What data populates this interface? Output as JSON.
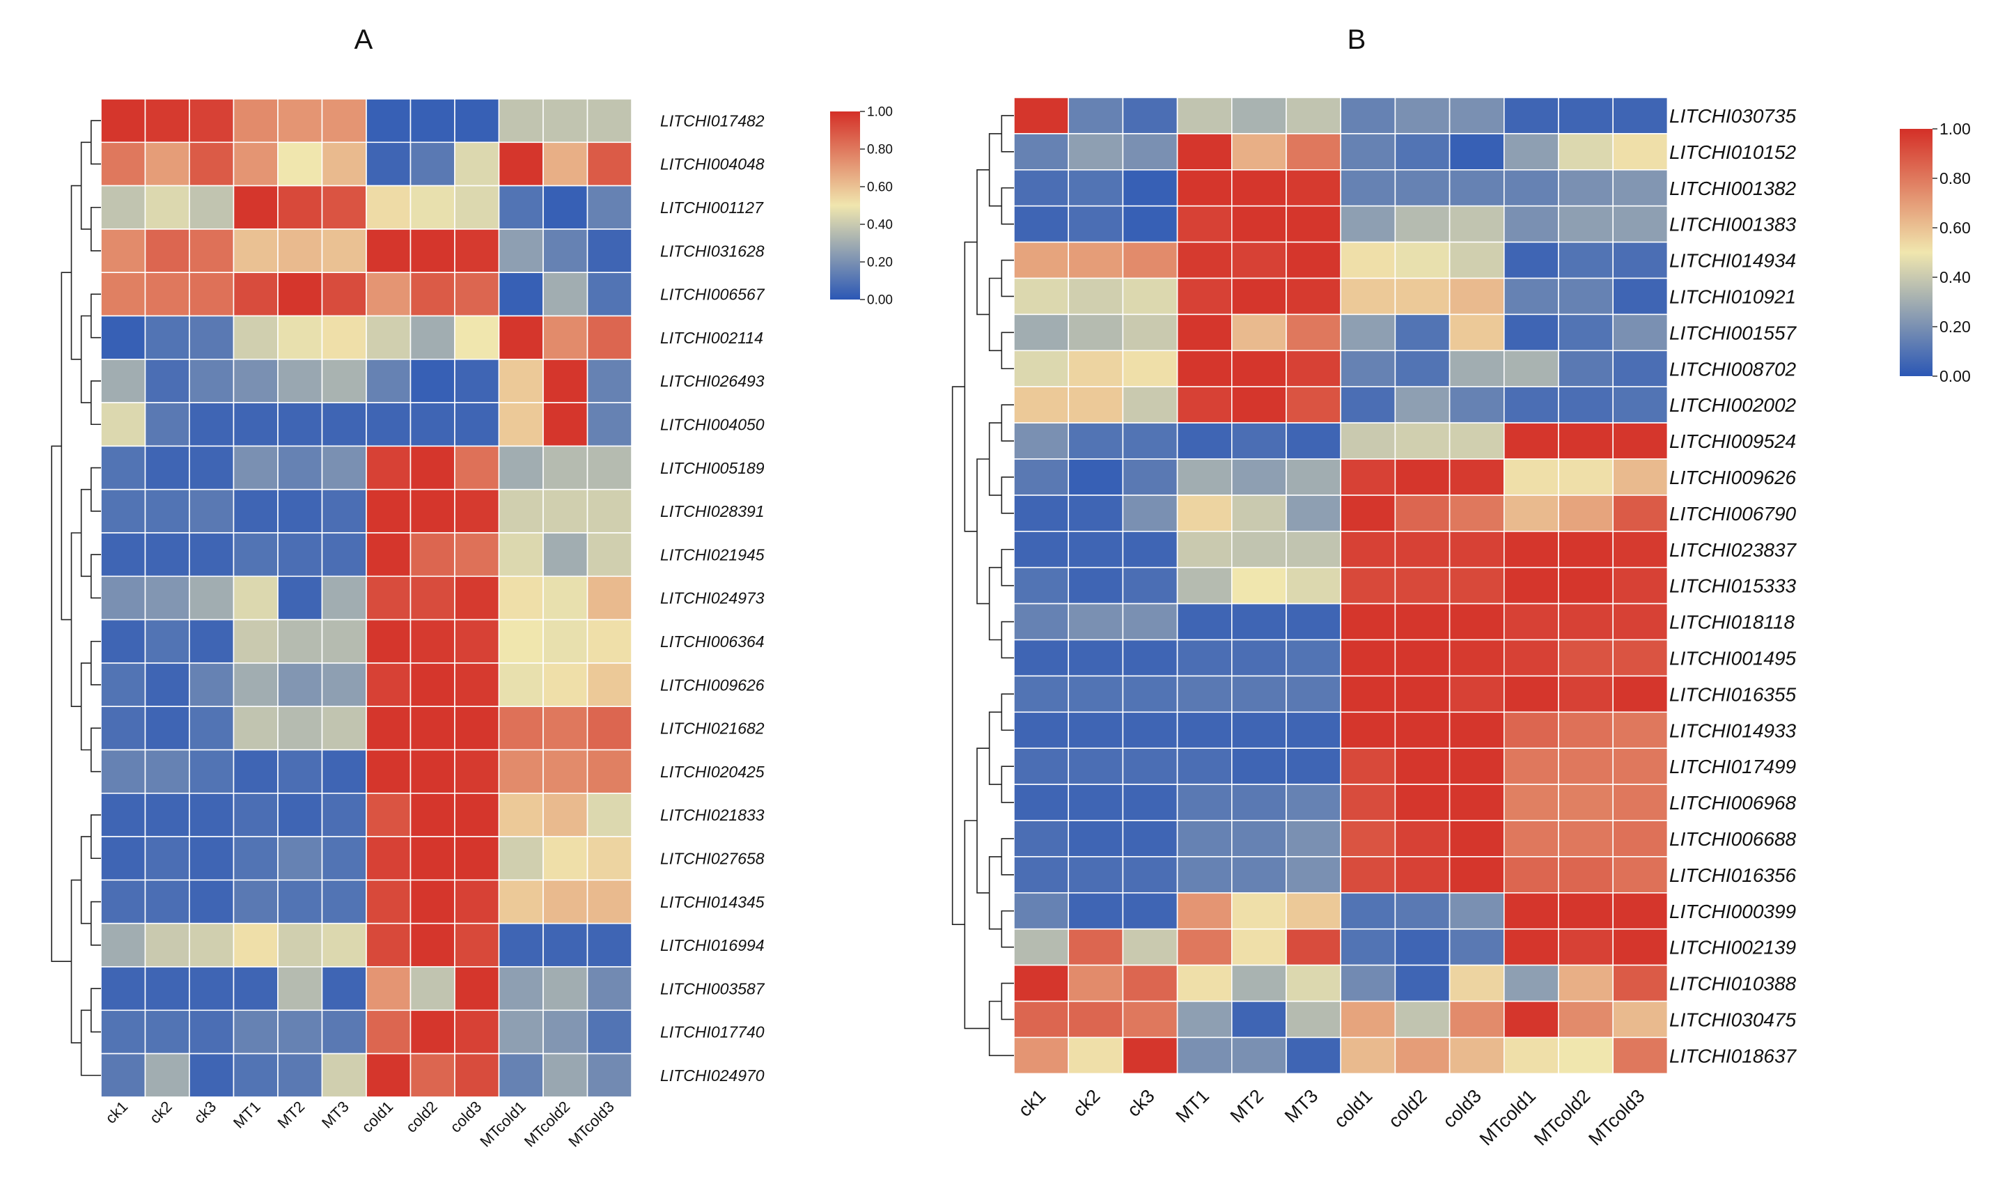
{
  "chart_data": [
    {
      "type": "heatmap",
      "panel_label": "A",
      "columns": [
        "ck1",
        "ck2",
        "ck3",
        "MT1",
        "MT2",
        "MT3",
        "cold1",
        "cold2",
        "cold3",
        "MTcold1",
        "MTcold2",
        "MTcold3"
      ],
      "rows": [
        "LITCHI017482",
        "LITCHI004048",
        "LITCHI001127",
        "LITCHI031628",
        "LITCHI006567",
        "LITCHI002114",
        "LITCHI026493",
        "LITCHI004050",
        "LITCHI005189",
        "LITCHI028391",
        "LITCHI021945",
        "LITCHI024973",
        "LITCHI006364",
        "LITCHI009626",
        "LITCHI021682",
        "LITCHI020425",
        "LITCHI021833",
        "LITCHI027658",
        "LITCHI014345",
        "LITCHI016994",
        "LITCHI003587",
        "LITCHI017740",
        "LITCHI024970"
      ],
      "values": [
        [
          0.98,
          0.97,
          0.95,
          0.75,
          0.72,
          0.72,
          0.03,
          0.03,
          0.03,
          0.38,
          0.38,
          0.38
        ],
        [
          0.8,
          0.7,
          0.88,
          0.72,
          0.5,
          0.62,
          0.05,
          0.12,
          0.45,
          0.98,
          0.65,
          0.88
        ],
        [
          0.38,
          0.45,
          0.38,
          0.98,
          0.93,
          0.9,
          0.53,
          0.48,
          0.45,
          0.1,
          0.03,
          0.15
        ],
        [
          0.75,
          0.85,
          0.82,
          0.6,
          0.62,
          0.6,
          0.98,
          0.98,
          0.97,
          0.25,
          0.15,
          0.05
        ],
        [
          0.78,
          0.8,
          0.82,
          0.92,
          0.98,
          0.92,
          0.72,
          0.88,
          0.85,
          0.03,
          0.3,
          0.1
        ],
        [
          0.03,
          0.1,
          0.12,
          0.42,
          0.48,
          0.52,
          0.42,
          0.3,
          0.5,
          0.98,
          0.75,
          0.85
        ],
        [
          0.3,
          0.08,
          0.15,
          0.2,
          0.28,
          0.32,
          0.15,
          0.03,
          0.05,
          0.58,
          0.98,
          0.15
        ],
        [
          0.45,
          0.12,
          0.05,
          0.05,
          0.05,
          0.05,
          0.05,
          0.05,
          0.05,
          0.58,
          0.98,
          0.15
        ],
        [
          0.1,
          0.05,
          0.05,
          0.2,
          0.15,
          0.2,
          0.95,
          0.98,
          0.82,
          0.3,
          0.35,
          0.35
        ],
        [
          0.1,
          0.1,
          0.12,
          0.05,
          0.05,
          0.08,
          0.98,
          0.98,
          0.97,
          0.42,
          0.42,
          0.42
        ],
        [
          0.05,
          0.05,
          0.05,
          0.1,
          0.08,
          0.08,
          0.98,
          0.85,
          0.82,
          0.45,
          0.3,
          0.42
        ],
        [
          0.2,
          0.22,
          0.3,
          0.45,
          0.05,
          0.3,
          0.92,
          0.92,
          0.97,
          0.52,
          0.48,
          0.62
        ],
        [
          0.05,
          0.1,
          0.05,
          0.4,
          0.35,
          0.35,
          0.98,
          0.97,
          0.95,
          0.5,
          0.48,
          0.52
        ],
        [
          0.1,
          0.05,
          0.15,
          0.3,
          0.22,
          0.25,
          0.95,
          0.98,
          0.97,
          0.48,
          0.52,
          0.58
        ],
        [
          0.08,
          0.05,
          0.1,
          0.38,
          0.35,
          0.38,
          0.98,
          0.98,
          0.98,
          0.82,
          0.8,
          0.85
        ],
        [
          0.15,
          0.15,
          0.1,
          0.05,
          0.08,
          0.05,
          0.98,
          0.98,
          0.97,
          0.75,
          0.75,
          0.78
        ],
        [
          0.05,
          0.05,
          0.05,
          0.08,
          0.05,
          0.08,
          0.9,
          0.98,
          0.98,
          0.58,
          0.62,
          0.45
        ],
        [
          0.05,
          0.08,
          0.05,
          0.1,
          0.15,
          0.1,
          0.95,
          0.98,
          0.98,
          0.42,
          0.52,
          0.55
        ],
        [
          0.08,
          0.08,
          0.05,
          0.12,
          0.1,
          0.1,
          0.93,
          0.98,
          0.95,
          0.58,
          0.62,
          0.62
        ],
        [
          0.3,
          0.4,
          0.42,
          0.52,
          0.42,
          0.45,
          0.93,
          0.98,
          0.93,
          0.05,
          0.05,
          0.05
        ],
        [
          0.05,
          0.05,
          0.05,
          0.05,
          0.35,
          0.05,
          0.72,
          0.38,
          0.98,
          0.25,
          0.3,
          0.18
        ],
        [
          0.1,
          0.1,
          0.08,
          0.15,
          0.15,
          0.12,
          0.85,
          0.98,
          0.95,
          0.25,
          0.22,
          0.1
        ],
        [
          0.12,
          0.3,
          0.05,
          0.1,
          0.12,
          0.42,
          0.98,
          0.85,
          0.92,
          0.15,
          0.28,
          0.18
        ]
      ],
      "colorbar": {
        "min": 0,
        "max": 1,
        "ticks": [
          "0.00",
          "0.20",
          "0.40",
          "0.60",
          "0.80",
          "1.00"
        ]
      },
      "colors": {
        "low": "#2b57b5",
        "mid": "#f0e6ae",
        "high": "#d42f27"
      }
    },
    {
      "type": "heatmap",
      "panel_label": "B",
      "columns": [
        "ck1",
        "ck2",
        "ck3",
        "MT1",
        "MT2",
        "MT3",
        "cold1",
        "cold2",
        "cold3",
        "MTcold1",
        "MTcold2",
        "MTcold3"
      ],
      "rows": [
        "LITCHI030735",
        "LITCHI010152",
        "LITCHI001382",
        "LITCHI001383",
        "LITCHI014934",
        "LITCHI010921",
        "LITCHI001557",
        "LITCHI008702",
        "LITCHI002002",
        "LITCHI009524",
        "LITCHI009626",
        "LITCHI006790",
        "LITCHI023837",
        "LITCHI015333",
        "LITCHI018118",
        "LITCHI001495",
        "LITCHI016355",
        "LITCHI014933",
        "LITCHI017499",
        "LITCHI006968",
        "LITCHI006688",
        "LITCHI016356",
        "LITCHI000399",
        "LITCHI002139",
        "LITCHI010388",
        "LITCHI030475",
        "LITCHI018637"
      ],
      "values": [
        [
          0.98,
          0.15,
          0.08,
          0.38,
          0.32,
          0.38,
          0.15,
          0.2,
          0.2,
          0.05,
          0.05,
          0.05
        ],
        [
          0.15,
          0.25,
          0.2,
          0.98,
          0.65,
          0.8,
          0.15,
          0.1,
          0.03,
          0.25,
          0.45,
          0.52
        ],
        [
          0.08,
          0.1,
          0.03,
          0.98,
          0.98,
          0.97,
          0.15,
          0.15,
          0.15,
          0.15,
          0.2,
          0.22
        ],
        [
          0.05,
          0.08,
          0.03,
          0.95,
          0.98,
          0.98,
          0.25,
          0.35,
          0.38,
          0.2,
          0.25,
          0.25
        ],
        [
          0.68,
          0.7,
          0.75,
          0.97,
          0.95,
          0.98,
          0.52,
          0.48,
          0.42,
          0.05,
          0.1,
          0.08
        ],
        [
          0.45,
          0.42,
          0.45,
          0.95,
          0.98,
          0.97,
          0.58,
          0.58,
          0.62,
          0.15,
          0.15,
          0.05
        ],
        [
          0.3,
          0.35,
          0.4,
          0.98,
          0.62,
          0.8,
          0.25,
          0.1,
          0.58,
          0.05,
          0.1,
          0.2
        ],
        [
          0.45,
          0.55,
          0.52,
          0.98,
          0.98,
          0.95,
          0.15,
          0.1,
          0.3,
          0.32,
          0.12,
          0.08
        ],
        [
          0.58,
          0.58,
          0.4,
          0.95,
          0.98,
          0.9,
          0.08,
          0.25,
          0.15,
          0.08,
          0.08,
          0.1
        ],
        [
          0.2,
          0.1,
          0.1,
          0.05,
          0.08,
          0.05,
          0.4,
          0.42,
          0.42,
          0.98,
          0.98,
          0.98
        ],
        [
          0.12,
          0.03,
          0.12,
          0.3,
          0.25,
          0.3,
          0.95,
          0.98,
          0.97,
          0.52,
          0.52,
          0.62
        ],
        [
          0.05,
          0.05,
          0.2,
          0.55,
          0.4,
          0.25,
          0.98,
          0.85,
          0.8,
          0.62,
          0.68,
          0.88
        ],
        [
          0.05,
          0.05,
          0.05,
          0.4,
          0.38,
          0.38,
          0.95,
          0.95,
          0.95,
          0.98,
          0.98,
          0.97
        ],
        [
          0.1,
          0.05,
          0.08,
          0.35,
          0.5,
          0.45,
          0.93,
          0.93,
          0.93,
          0.98,
          0.98,
          0.95
        ],
        [
          0.15,
          0.2,
          0.2,
          0.05,
          0.05,
          0.05,
          0.98,
          0.98,
          0.98,
          0.95,
          0.95,
          0.95
        ],
        [
          0.05,
          0.05,
          0.05,
          0.08,
          0.08,
          0.1,
          0.98,
          0.98,
          0.97,
          0.95,
          0.9,
          0.9
        ],
        [
          0.1,
          0.1,
          0.1,
          0.12,
          0.12,
          0.12,
          0.98,
          0.98,
          0.95,
          0.98,
          0.95,
          0.98
        ],
        [
          0.05,
          0.05,
          0.05,
          0.05,
          0.05,
          0.05,
          0.98,
          0.98,
          0.98,
          0.85,
          0.82,
          0.8
        ],
        [
          0.08,
          0.08,
          0.08,
          0.08,
          0.05,
          0.05,
          0.93,
          0.98,
          0.98,
          0.8,
          0.8,
          0.8
        ],
        [
          0.05,
          0.05,
          0.05,
          0.12,
          0.12,
          0.15,
          0.92,
          0.98,
          0.98,
          0.78,
          0.78,
          0.8
        ],
        [
          0.08,
          0.05,
          0.05,
          0.15,
          0.15,
          0.2,
          0.9,
          0.95,
          0.98,
          0.8,
          0.8,
          0.82
        ],
        [
          0.08,
          0.08,
          0.08,
          0.15,
          0.15,
          0.2,
          0.92,
          0.95,
          0.98,
          0.85,
          0.85,
          0.82
        ],
        [
          0.15,
          0.05,
          0.05,
          0.72,
          0.52,
          0.58,
          0.1,
          0.12,
          0.2,
          0.98,
          0.98,
          0.98
        ],
        [
          0.35,
          0.85,
          0.4,
          0.8,
          0.52,
          0.92,
          0.1,
          0.05,
          0.12,
          0.98,
          0.95,
          0.98
        ],
        [
          0.98,
          0.75,
          0.85,
          0.52,
          0.32,
          0.45,
          0.18,
          0.05,
          0.55,
          0.25,
          0.65,
          0.88
        ],
        [
          0.85,
          0.85,
          0.8,
          0.25,
          0.05,
          0.35,
          0.68,
          0.38,
          0.75,
          0.98,
          0.75,
          0.62
        ],
        [
          0.72,
          0.52,
          0.98,
          0.2,
          0.2,
          0.05,
          0.62,
          0.7,
          0.62,
          0.52,
          0.5,
          0.8
        ]
      ],
      "colorbar": {
        "min": 0,
        "max": 1,
        "ticks": [
          "0.00",
          "0.20",
          "0.40",
          "0.60",
          "0.80",
          "1.00"
        ]
      },
      "colors": {
        "low": "#2b57b5",
        "mid": "#f0e6ae",
        "high": "#d42f27"
      }
    }
  ]
}
